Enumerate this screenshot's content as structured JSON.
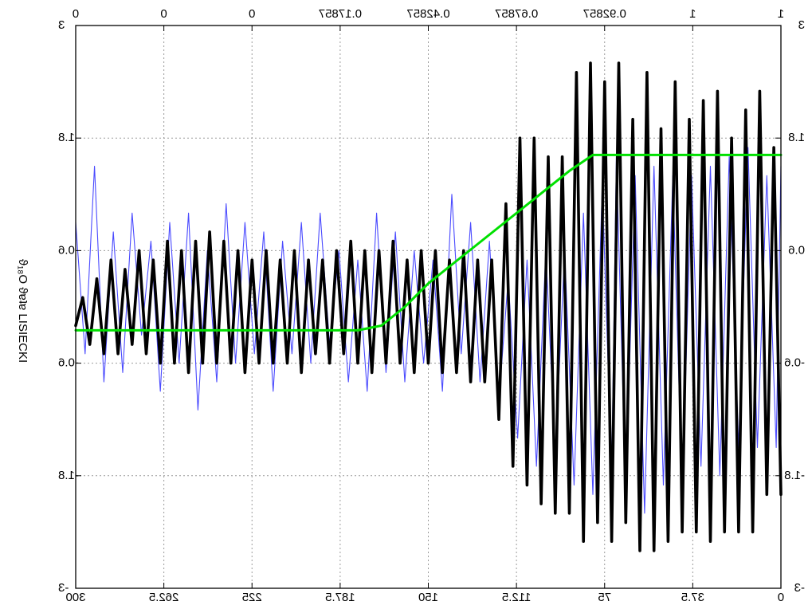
{
  "chart_data": {
    "type": "line",
    "mirrored_horizontally": true,
    "ylabel": "ϑ₁₈O ϑɐʇɐ LISIECKI",
    "xlim": [
      300,
      0
    ],
    "ylim": [
      -3,
      3
    ],
    "grid": true,
    "x_ticks_bottom": [
      "300",
      "262.5",
      "225",
      "187.5",
      "150",
      "112.5",
      "75",
      "37.5",
      "0"
    ],
    "x_ticks_top": [
      "0",
      "0",
      "0",
      "0.17857",
      "0.42857",
      "0.67857",
      "0.92857",
      "1",
      "1"
    ],
    "y_ticks_left": [
      "-3",
      "-1.8",
      "-0.6",
      "0.6",
      "1.8",
      "3"
    ],
    "y_ticks_right": [
      "-3",
      "-1.8",
      "-0.6",
      "0.6",
      "1.8",
      "3"
    ],
    "top_axis_range": [
      0,
      1
    ],
    "colors": {
      "blue": "#4a4aff",
      "black": "#000000",
      "green": "#00e000"
    },
    "series": [
      {
        "color": "blue",
        "x": [
          300,
          296,
          292,
          288,
          284,
          280,
          276,
          272,
          268,
          264,
          260,
          256,
          252,
          248,
          244,
          240,
          236,
          232,
          228,
          224,
          220,
          216,
          212,
          208,
          204,
          200,
          196,
          192,
          188,
          184,
          180,
          176,
          172,
          168,
          164,
          160,
          156,
          152,
          148,
          144,
          140,
          136,
          132,
          128,
          124,
          120,
          116,
          112,
          108,
          104,
          100,
          96,
          92,
          88,
          84,
          80,
          76,
          72,
          70,
          66,
          62,
          58,
          54,
          50,
          46,
          42,
          38,
          34,
          30,
          26,
          22,
          18,
          14,
          10,
          6,
          2,
          0
        ],
        "y": [
          0.9,
          -0.5,
          1.5,
          -0.8,
          0.8,
          -0.7,
          1.0,
          -0.3,
          0.7,
          -0.9,
          0.9,
          -0.6,
          1.0,
          -1.1,
          0.6,
          -0.8,
          1.1,
          -0.6,
          0.9,
          -0.5,
          0.8,
          -0.9,
          0.7,
          -0.5,
          0.9,
          -0.6,
          1.0,
          -0.4,
          0.6,
          -0.8,
          0.5,
          -0.9,
          1.0,
          -0.7,
          0.8,
          -0.8,
          0.6,
          -0.6,
          0.5,
          -0.9,
          1.2,
          -0.5,
          0.9,
          -0.8,
          0.7,
          -1.0,
          0.3,
          -1.4,
          0.5,
          -1.7,
          0.6,
          -1.6,
          0.6,
          -1.9,
          1.0,
          -2.0,
          1.3,
          -1.8,
          1.6,
          -2.0,
          1.4,
          -2.2,
          1.5,
          -1.9,
          1.4,
          -2.0,
          1.4,
          -1.7,
          1.5,
          -1.8,
          1.6,
          -1.5,
          1.7,
          -1.5,
          1.4,
          -1.5,
          1.5
        ]
      },
      {
        "color": "black",
        "x": [
          300,
          297,
          294,
          291,
          288,
          285,
          282,
          279,
          276,
          273,
          270,
          267,
          264,
          261,
          258,
          255,
          252,
          249,
          246,
          243,
          240,
          237,
          234,
          231,
          228,
          225,
          222,
          219,
          216,
          213,
          210,
          207,
          204,
          201,
          198,
          195,
          192,
          189,
          186,
          183,
          180,
          177,
          174,
          171,
          168,
          165,
          162,
          159,
          156,
          153,
          150,
          147,
          144,
          141,
          138,
          135,
          132,
          129,
          126,
          123,
          120,
          117,
          114,
          111,
          108,
          105,
          102,
          99,
          96,
          93,
          90,
          87,
          84,
          81,
          78,
          75,
          72,
          69,
          66,
          63,
          60,
          57,
          54,
          51,
          48,
          45,
          42,
          39,
          36,
          33,
          30,
          27,
          24,
          21,
          18,
          15,
          12,
          9,
          6,
          3,
          0
        ],
        "y": [
          -0.2,
          0.1,
          -0.4,
          0.3,
          -0.5,
          0.5,
          -0.5,
          0.4,
          -0.4,
          0.6,
          -0.5,
          0.5,
          -0.6,
          0.7,
          -0.6,
          0.6,
          -0.7,
          0.7,
          -0.6,
          0.8,
          -0.6,
          0.7,
          -0.6,
          0.6,
          -0.7,
          0.5,
          -0.6,
          0.6,
          -0.6,
          0.5,
          -0.6,
          0.6,
          -0.7,
          0.5,
          -0.5,
          0.5,
          -0.6,
          0.6,
          -0.5,
          0.7,
          -0.6,
          0.6,
          -0.7,
          0.6,
          -0.6,
          0.7,
          -0.6,
          0.5,
          -0.7,
          0.6,
          -0.6,
          0.6,
          -0.7,
          0.5,
          -0.7,
          0.6,
          -0.8,
          0.5,
          -0.8,
          0.5,
          -1.2,
          1.1,
          -1.7,
          1.8,
          -1.9,
          1.8,
          -2.1,
          1.6,
          -2.2,
          1.6,
          -2.2,
          2.5,
          -2.5,
          2.6,
          -2.3,
          2.4,
          -2.5,
          2.6,
          -2.3,
          2.0,
          -2.6,
          2.5,
          -2.6,
          1.9,
          -2.5,
          2.4,
          -2.4,
          2.0,
          -2.4,
          2.2,
          -2.5,
          2.3,
          -2.4,
          1.8,
          -2.4,
          2.1,
          -2.4,
          2.3,
          -2.0,
          1.7,
          -2.0
        ]
      },
      {
        "color": "green",
        "x": [
          300,
          270,
          240,
          210,
          195,
          185,
          180,
          170,
          160,
          150,
          140,
          130,
          120,
          110,
          100,
          90,
          80,
          70,
          65,
          60,
          50,
          40,
          30,
          20,
          10,
          0
        ],
        "y": [
          -0.25,
          -0.25,
          -0.25,
          -0.25,
          -0.25,
          -0.25,
          -0.25,
          -0.2,
          0.0,
          0.25,
          0.45,
          0.65,
          0.85,
          1.05,
          1.25,
          1.45,
          1.62,
          1.62,
          1.62,
          1.62,
          1.62,
          1.62,
          1.62,
          1.62,
          1.62,
          1.62
        ]
      }
    ]
  }
}
